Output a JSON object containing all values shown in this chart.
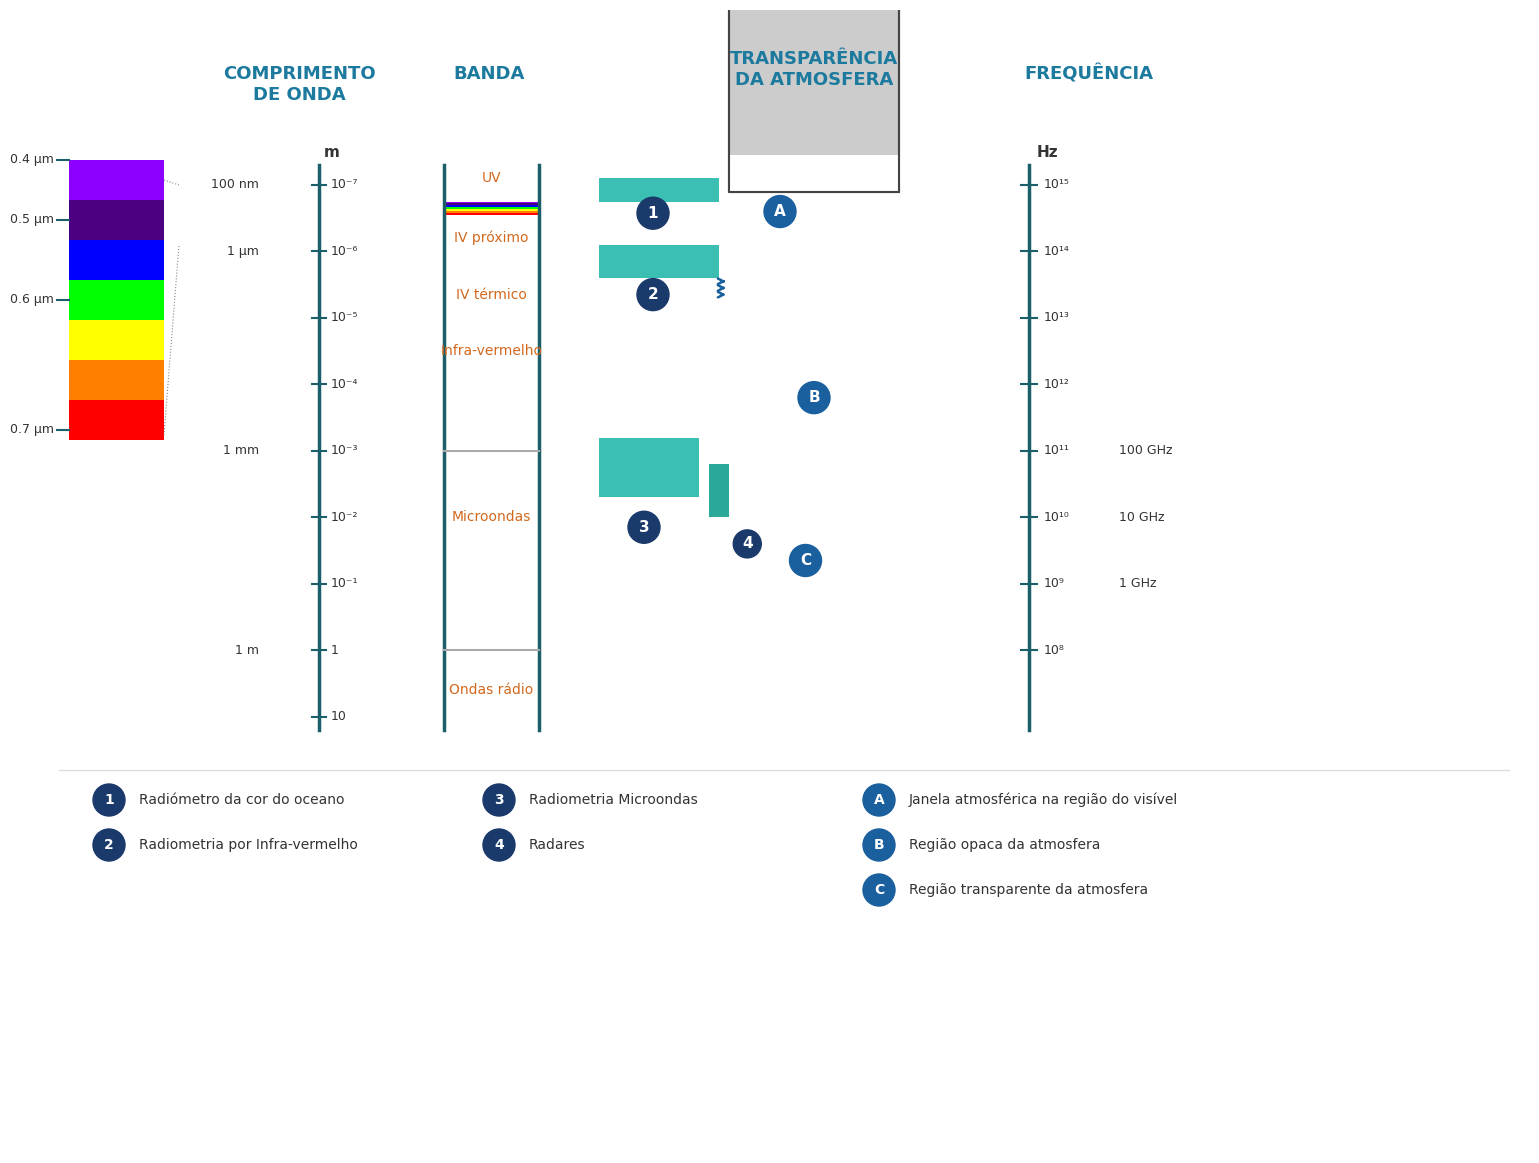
{
  "title_comprimento": "COMPRIMENTO\nDE ONDA",
  "title_banda": "BANDA",
  "title_transparencia": "TRANSPARÊNCIA\nDA ATMOSFERA",
  "title_frequencia": "FREQUÊNCIA",
  "header_color": "#1B7A9E",
  "teal_color": "#3BBFB2",
  "dark_teal": "#1A5F6A",
  "orange_color": "#D2691E",
  "axis_color": "#1A5F6A",
  "scale_labels_left": [
    "0.4 μm",
    "0.5 μm",
    "0.6 μm",
    "0.7 μm"
  ],
  "scale_labels_nm": [
    "100 nm",
    "1 μm"
  ],
  "scale_labels_m": [
    "10⁻⁷",
    "10⁻⁶",
    "10⁻⁵",
    "10⁻⁴",
    "10⁻³",
    "10⁻²",
    "10⁻¹",
    "1",
    "10"
  ],
  "scale_labels_named": [
    "1 mm",
    "1 m"
  ],
  "band_labels": [
    "UV",
    "IV próximo",
    "IV térmico",
    "Infra-vermelho",
    "Microondas",
    "Ondas rádio"
  ],
  "freq_labels": [
    "10¹⁵",
    "10¹⁴",
    "10¹³",
    "10¹²",
    "10¹¹",
    "10¹⁰",
    "10⁹",
    "10⁸"
  ],
  "freq_ghz_labels": [
    "100 GHz",
    "10 GHz",
    "1 GHz"
  ],
  "legend_items": [
    {
      "num": "1",
      "text": "Radiómetro da cor do oceano"
    },
    {
      "num": "2",
      "text": "Radiometria por Infra-vermelho"
    },
    {
      "num": "3",
      "text": "Radiometria Microondas"
    },
    {
      "num": "4",
      "text": "Radares"
    },
    {
      "num": "A",
      "text": "Janela atmosférica na região do visível"
    },
    {
      "num": "B",
      "text": "Região opaca da atmosfera"
    },
    {
      "num": "C",
      "text": "Região transparente da atmosfera"
    }
  ]
}
